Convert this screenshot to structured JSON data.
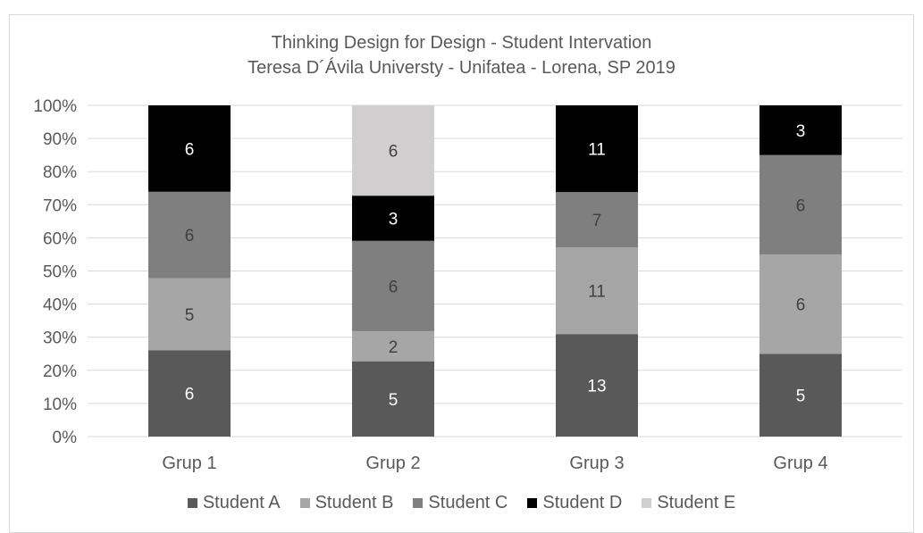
{
  "chart_data": {
    "type": "bar",
    "stacked": true,
    "percent_stacked": true,
    "title": "Thinking Design for Design - Student Intervation",
    "subtitle": "Teresa D´Ávila Universty - Unifatea - Lorena, SP 2019",
    "categories": [
      "Grup 1",
      "Grup 2",
      "Grup 3",
      "Grup 4"
    ],
    "series": [
      {
        "name": "Student A",
        "values": [
          6,
          5,
          13,
          5
        ],
        "color": "#595959",
        "label_color": "#ffffff"
      },
      {
        "name": "Student B",
        "values": [
          5,
          2,
          11,
          6
        ],
        "color": "#a6a6a6",
        "label_color": "#404040"
      },
      {
        "name": "Student C",
        "values": [
          6,
          6,
          7,
          6
        ],
        "color": "#7f7f7f",
        "label_color": "#404040"
      },
      {
        "name": "Student D",
        "values": [
          6,
          3,
          11,
          3
        ],
        "color": "#000000",
        "label_color": "#ffffff"
      },
      {
        "name": "Student E",
        "values": [
          null,
          6,
          null,
          null
        ],
        "color": "#d0cece",
        "label_color": "#404040"
      }
    ],
    "yticks": [
      "0%",
      "10%",
      "20%",
      "30%",
      "40%",
      "50%",
      "60%",
      "70%",
      "80%",
      "90%",
      "100%"
    ],
    "ylim": [
      0,
      100
    ],
    "grid": true,
    "legend_position": "bottom"
  }
}
